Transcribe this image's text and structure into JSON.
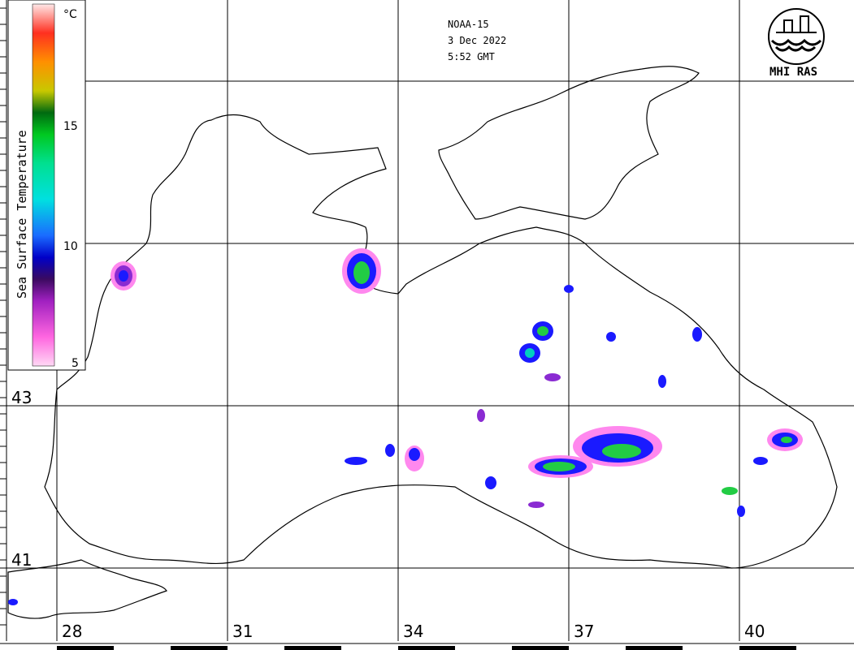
{
  "header": {
    "satellite": "NOAA-15",
    "date": "3 Dec 2022",
    "time": "5:52 GMT"
  },
  "logo": {
    "text": "MHI RAS"
  },
  "legend": {
    "title": "Sea Surface Temperature",
    "unit": "°C",
    "ticks": [
      "15",
      "10",
      "5"
    ]
  },
  "grid": {
    "lon_labels": [
      "28",
      "31",
      "34",
      "37",
      "40"
    ],
    "lat_labels": [
      "43",
      "41"
    ]
  },
  "colors": {
    "coast": "#000000",
    "grid": "#000000",
    "cold": "#ff88ee",
    "cool": "#8a2bd2",
    "mid": "#1a1aff",
    "warm": "#22cc44"
  }
}
